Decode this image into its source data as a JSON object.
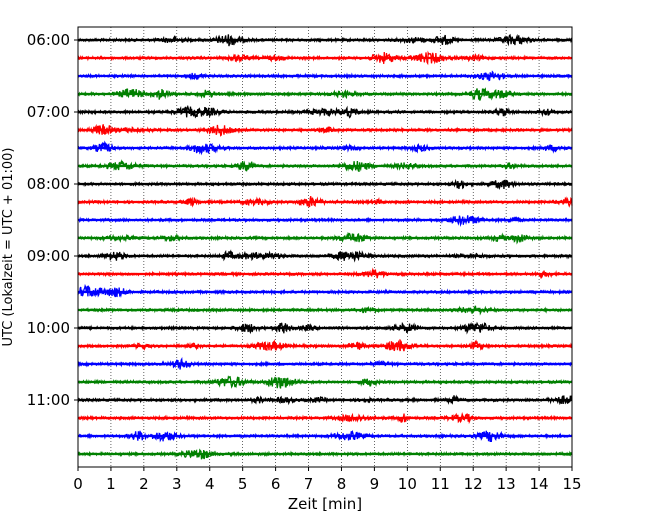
{
  "chart_data": {
    "type": "line",
    "subtype": "helicorder-seismogram",
    "xlabel": "Zeit  [min]",
    "ylabel": "UTC (Lokalzeit = UTC + 01:00)",
    "xlim": [
      0,
      15
    ],
    "x_ticks": [
      "0",
      "1",
      "2",
      "3",
      "4",
      "5",
      "6",
      "7",
      "8",
      "9",
      "10",
      "11",
      "12",
      "13",
      "14",
      "15"
    ],
    "y_tick_labels": [
      "06:00",
      "07:00",
      "08:00",
      "09:00",
      "10:00",
      "11:00"
    ],
    "trace_start_times": [
      "06:00",
      "06:15",
      "06:30",
      "06:45",
      "07:00",
      "07:15",
      "07:30",
      "07:45",
      "08:00",
      "08:15",
      "08:30",
      "08:45",
      "09:00",
      "09:15",
      "09:30",
      "09:45",
      "10:00",
      "10:15",
      "10:30",
      "10:45",
      "11:00",
      "11:15",
      "11:30",
      "11:45"
    ],
    "trace_color_cycle": [
      "#000000",
      "#ff0000",
      "#0000ff",
      "#008000"
    ],
    "minutes_per_line": 15,
    "grid": "vertical dotted at each minute"
  }
}
